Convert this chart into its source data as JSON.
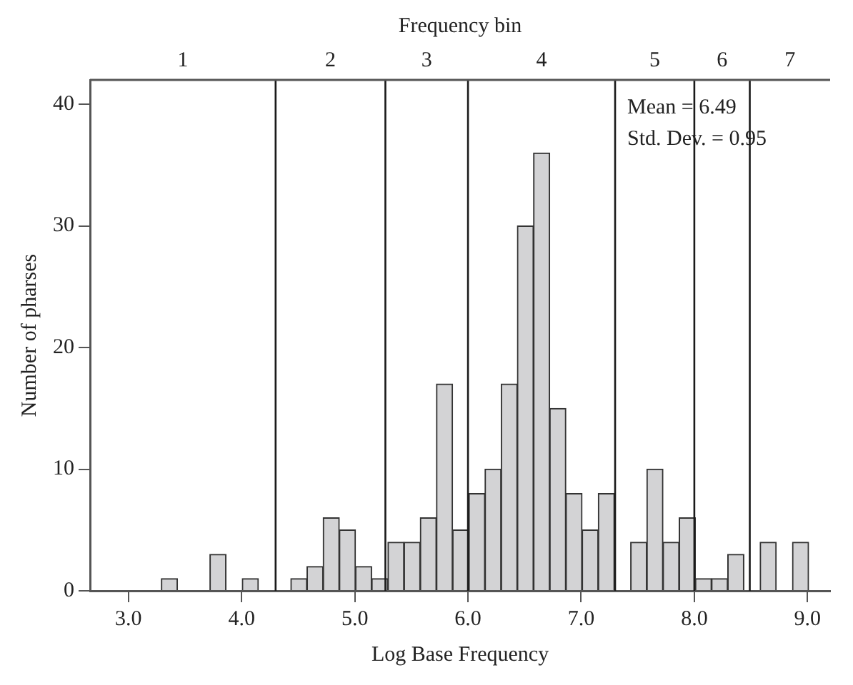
{
  "chart_data": {
    "type": "histogram",
    "xlabel": "Log Base Frequency",
    "ylabel": "Number of pharses",
    "x2label": "Frequency bin",
    "bins": [
      3.29,
      3.433,
      3.576,
      3.719,
      3.862,
      4.005,
      4.148,
      4.291,
      4.434,
      4.577,
      4.72,
      4.863,
      5.006,
      5.149,
      5.292,
      5.435,
      5.578,
      5.721,
      5.864,
      6.007,
      6.15,
      6.293,
      6.436,
      6.579,
      6.722,
      6.865,
      7.008,
      7.151,
      7.294,
      7.437,
      7.58,
      7.723,
      7.866,
      8.009,
      8.152,
      8.295,
      8.438,
      8.581,
      8.724,
      8.867,
      9.01
    ],
    "values": [
      1,
      0,
      0,
      3,
      0,
      1,
      0,
      0,
      1,
      2,
      6,
      5,
      2,
      1,
      4,
      4,
      6,
      17,
      5,
      8,
      10,
      17,
      30,
      36,
      15,
      8,
      5,
      8,
      0,
      4,
      10,
      4,
      6,
      1,
      1,
      3,
      0,
      4,
      0,
      4
    ],
    "color": "#d3d3d5",
    "xlim": [
      2.66,
      9.2
    ],
    "xticks": [
      {
        "value": 3,
        "label": "3.0"
      },
      {
        "value": 4,
        "label": "4.0"
      },
      {
        "value": 5,
        "label": "5.0"
      },
      {
        "value": 6,
        "label": "6.0"
      },
      {
        "value": 7,
        "label": "7.0"
      },
      {
        "value": 8,
        "label": "8.0"
      },
      {
        "value": 9,
        "label": "9.0"
      }
    ],
    "ylim": [
      0,
      42
    ],
    "yticks": [
      0,
      10,
      20,
      30,
      40
    ],
    "ref_lines": [
      {
        "axis": "x",
        "value": 4.3,
        "color": "#1a1a1a"
      },
      {
        "axis": "x",
        "value": 5.27,
        "color": "#1a1a1a"
      },
      {
        "axis": "x",
        "value": 6.0,
        "color": "#1a1a1a"
      },
      {
        "axis": "x",
        "value": 7.3,
        "color": "#1a1a1a"
      },
      {
        "axis": "x",
        "value": 8.0,
        "color": "#1a1a1a"
      },
      {
        "axis": "x",
        "value": 8.49,
        "color": "#1a1a1a"
      }
    ],
    "annotations": [
      "1",
      "2",
      "3",
      "4",
      "5",
      "6",
      "7",
      "Mean = 6.49",
      "Std. Dev. = 0.95"
    ],
    "grid": false,
    "legend": false
  }
}
